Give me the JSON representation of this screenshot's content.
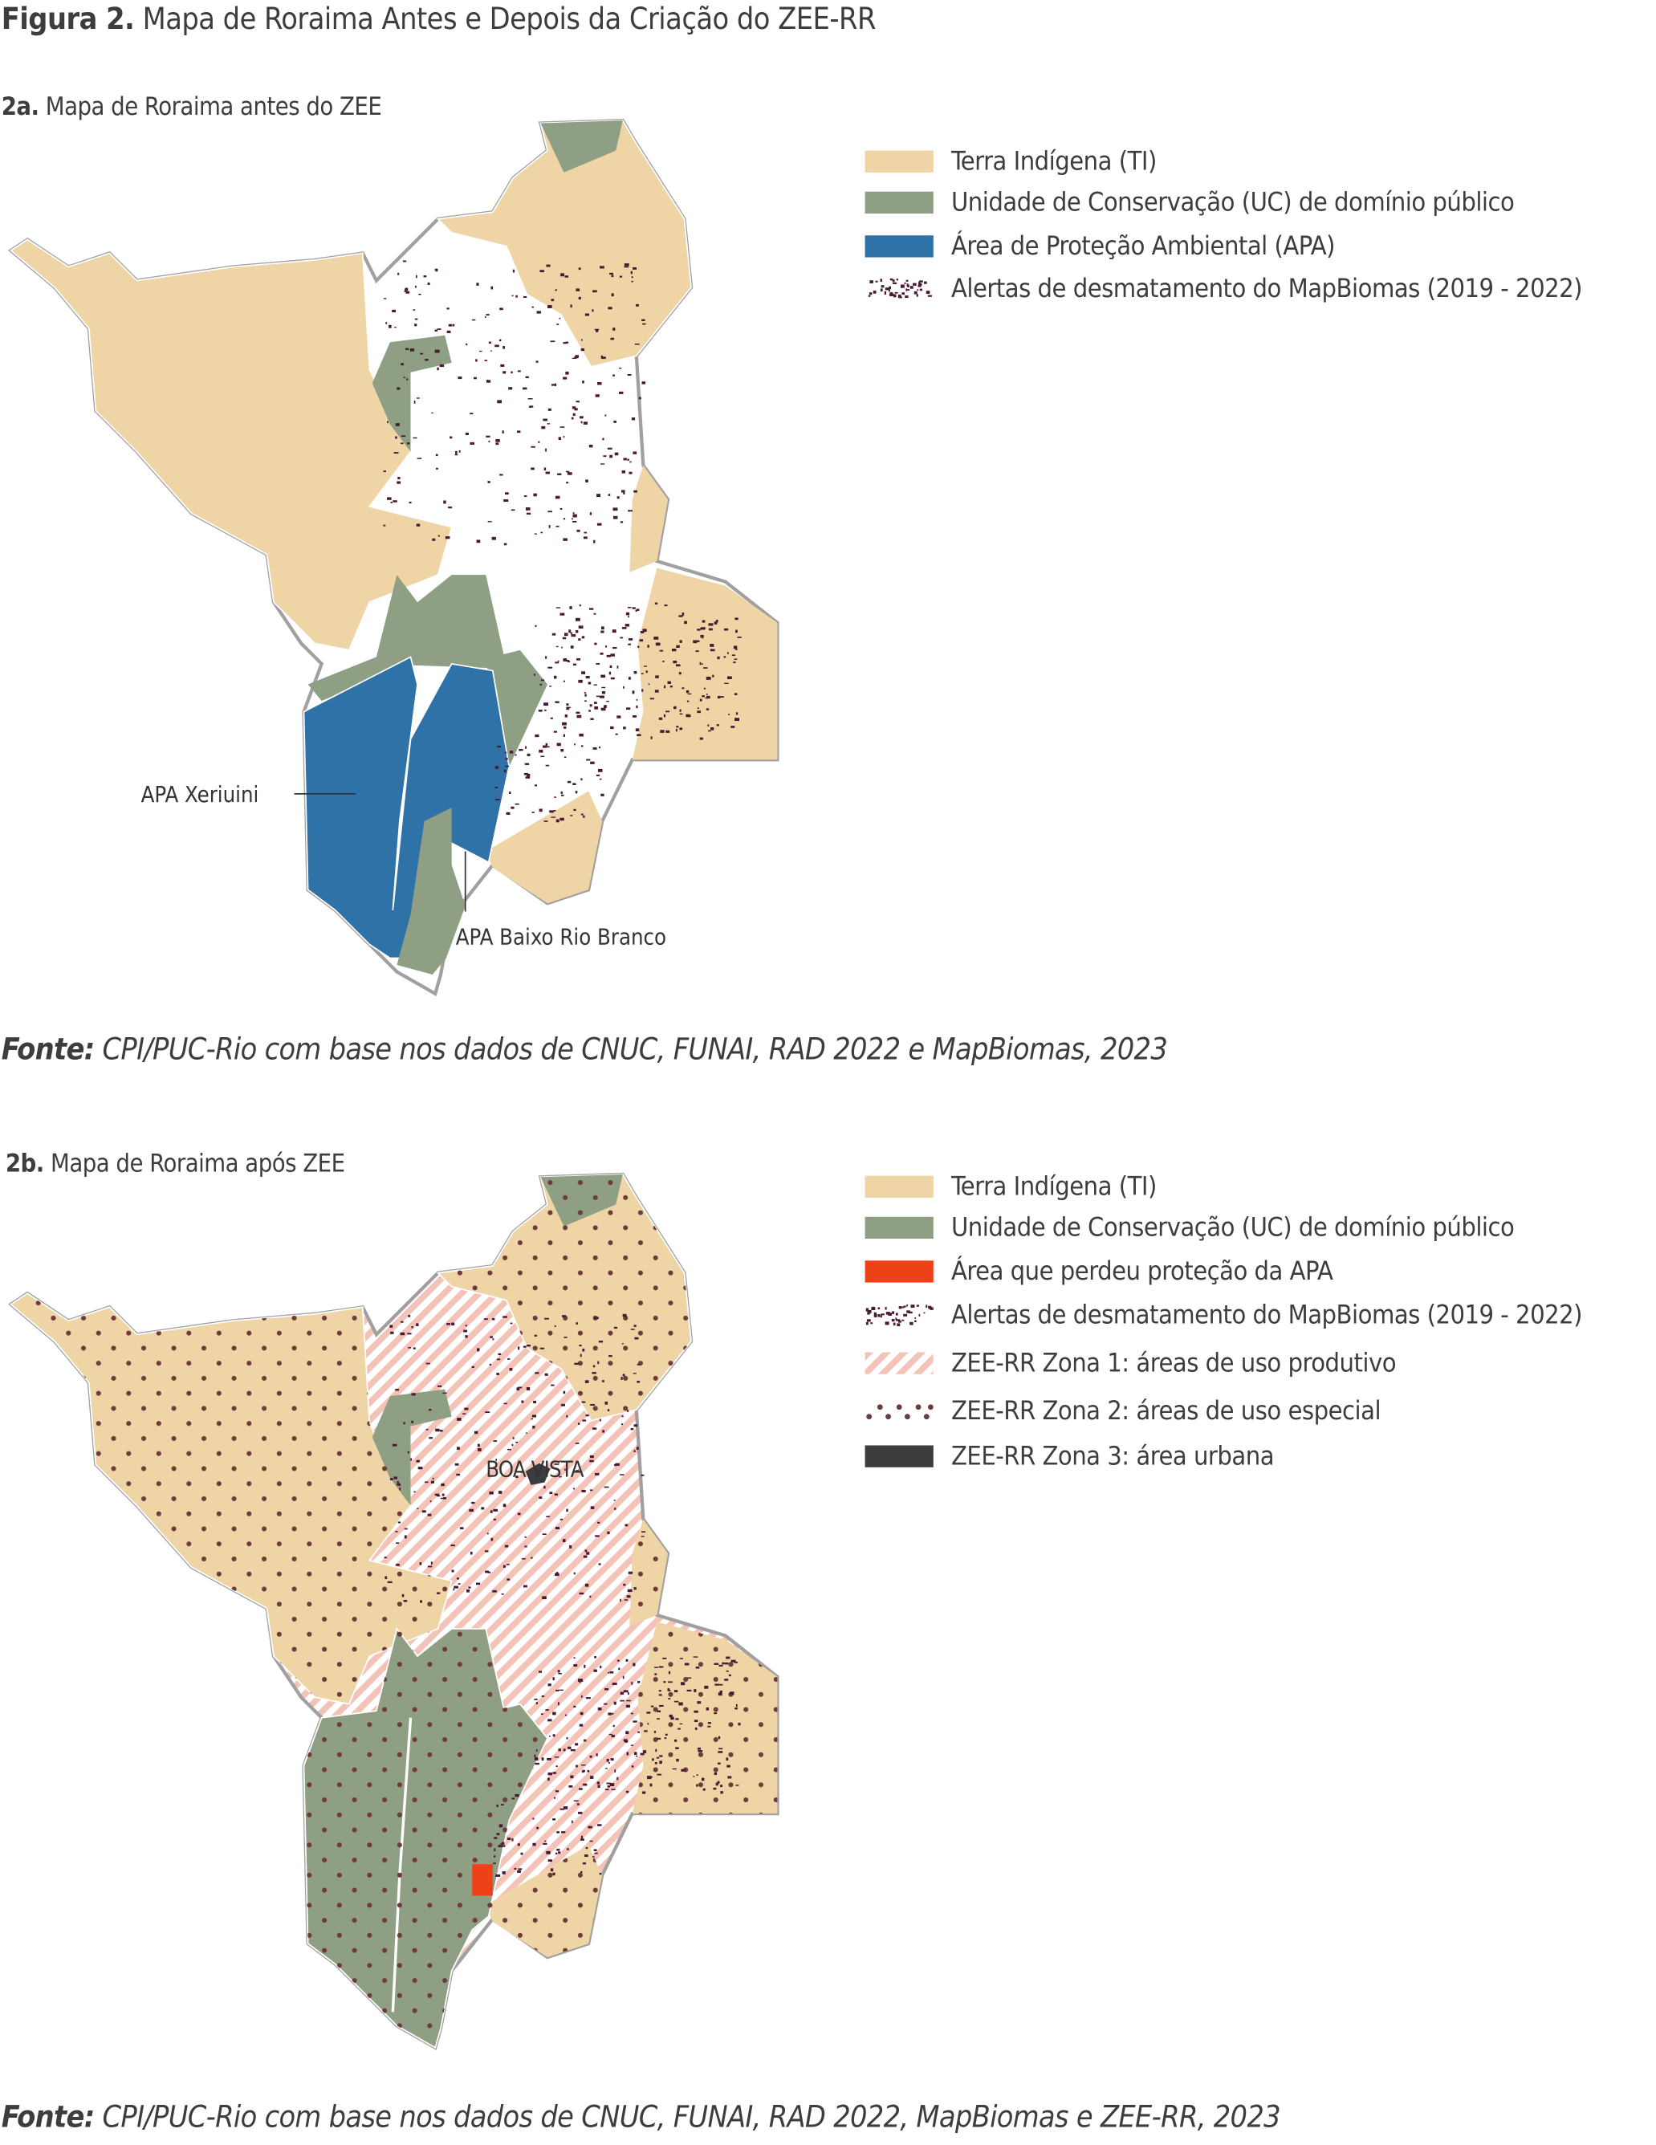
{
  "figure": {
    "title_bold": "Figura 2.",
    "title_rest": " Mapa de Roraima Antes e Depois da Criação do ZEE-RR"
  },
  "colors": {
    "terra_indigena": "#efd5a6",
    "unidade_conservacao": "#8e9f84",
    "apa": "#2e72a8",
    "perdeu_protecao": "#ee4118",
    "desmatamento": "#4a1a33",
    "zona1_hatch": "#f4c3b8",
    "zona2_dots": "#6e3b3b",
    "zona3_urbana": "#3b3c3e",
    "border": "#a0a0a0"
  },
  "map_a": {
    "label_bold": "2a.",
    "label_rest": " Mapa de Roraima antes do ZEE",
    "annotations": [
      "APA Xeriuini",
      "APA Baixo Rio Branco"
    ],
    "legend": [
      {
        "label": "Terra Indígena (TI)",
        "swatch": "solid-tan"
      },
      {
        "label": "Unidade de Conservação (UC) de domínio público",
        "swatch": "solid-green"
      },
      {
        "label": "Área de Proteção Ambiental (APA)",
        "swatch": "solid-blue"
      },
      {
        "label": "Alertas de desmatamento do MapBiomas (2019 - 2022)",
        "swatch": "speckle"
      }
    ],
    "source_bold": "Fonte:",
    "source_rest": " CPI/PUC-Rio com base nos dados de CNUC, FUNAI, RAD 2022 e MapBiomas, 2023"
  },
  "map_b": {
    "label_bold": "2b.",
    "label_rest": " Mapa de Roraima após ZEE",
    "city_label": "BOA VISTA",
    "legend": [
      {
        "label": "Terra Indígena (TI)",
        "swatch": "solid-tan"
      },
      {
        "label": "Unidade de Conservação (UC) de domínio público",
        "swatch": "solid-green"
      },
      {
        "label": "Área que perdeu proteção da APA",
        "swatch": "solid-red"
      },
      {
        "label": "Alertas de desmatamento do MapBiomas (2019 - 2022)",
        "swatch": "speckle"
      },
      {
        "label": "ZEE-RR Zona 1: áreas de uso produtivo",
        "swatch": "hatch-pink"
      },
      {
        "label": "ZEE-RR Zona 2: áreas de uso especial",
        "swatch": "dots"
      },
      {
        "label": "ZEE-RR Zona 3: área urbana",
        "swatch": "solid-dark"
      }
    ],
    "source_bold": "Fonte:",
    "source_rest": " CPI/PUC-Rio com base nos dados de CNUC, FUNAI, RAD 2022, MapBiomas e ZEE-RR, 2023"
  }
}
